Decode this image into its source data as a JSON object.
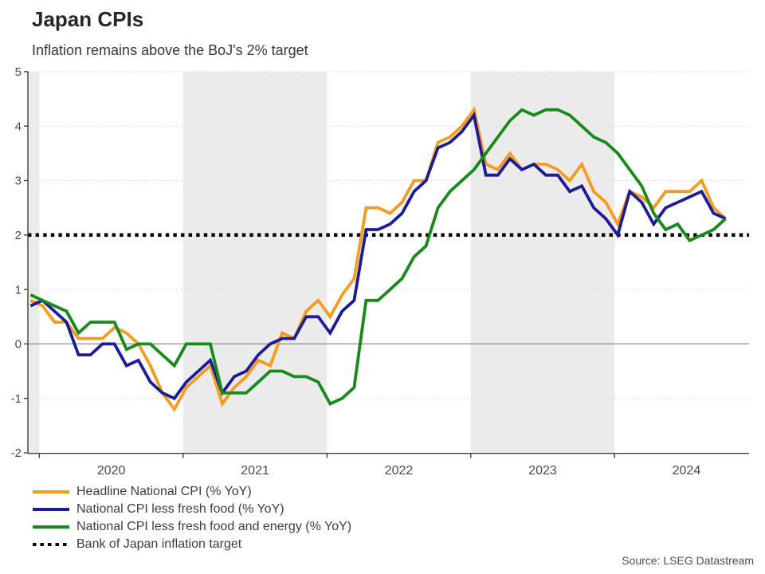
{
  "header": {
    "title": "Japan CPIs",
    "subtitle": "Inflation remains above the BoJ's 2% target"
  },
  "footer": {
    "source": "Source: LSEG Datastream"
  },
  "legend": {
    "items": [
      {
        "label": "Headline National CPI (% YoY)",
        "color": "#F59C1E",
        "style": "solid"
      },
      {
        "label": "National CPI less fresh food (% YoY)",
        "color": "#1C1C99",
        "style": "solid"
      },
      {
        "label": "National CPI less fresh food and energy (% YoY)",
        "color": "#188A1C",
        "style": "solid"
      },
      {
        "label": "Bank of Japan inflation target",
        "color": "#000000",
        "style": "dotted"
      }
    ]
  },
  "chart_data": {
    "type": "line",
    "title": "Japan CPIs",
    "subtitle": "Inflation remains above the BoJ's 2% target",
    "xlabel": "",
    "ylabel": "",
    "ylim": [
      -2,
      5
    ],
    "yticks": [
      -2,
      -1,
      0,
      1,
      2,
      3,
      4,
      5
    ],
    "grid": "horizontal-dashed",
    "legend_position": "bottom-left",
    "x": [
      "2019-12",
      "2020-01",
      "2020-02",
      "2020-03",
      "2020-04",
      "2020-05",
      "2020-06",
      "2020-07",
      "2020-08",
      "2020-09",
      "2020-10",
      "2020-11",
      "2020-12",
      "2021-01",
      "2021-02",
      "2021-03",
      "2021-04",
      "2021-05",
      "2021-06",
      "2021-07",
      "2021-08",
      "2021-09",
      "2021-10",
      "2021-11",
      "2021-12",
      "2022-01",
      "2022-02",
      "2022-03",
      "2022-04",
      "2022-05",
      "2022-06",
      "2022-07",
      "2022-08",
      "2022-09",
      "2022-10",
      "2022-11",
      "2022-12",
      "2023-01",
      "2023-02",
      "2023-03",
      "2023-04",
      "2023-05",
      "2023-06",
      "2023-07",
      "2023-08",
      "2023-09",
      "2023-10",
      "2023-11",
      "2023-12",
      "2024-01",
      "2024-02",
      "2024-03",
      "2024-04",
      "2024-05",
      "2024-06",
      "2024-07",
      "2024-08",
      "2024-09",
      "2024-10"
    ],
    "series": [
      {
        "name": "Headline National CPI (% YoY)",
        "color": "#F59C1E",
        "values": [
          0.8,
          0.7,
          0.4,
          0.4,
          0.1,
          0.1,
          0.1,
          0.3,
          0.2,
          0.0,
          -0.4,
          -0.9,
          -1.2,
          -0.8,
          -0.6,
          -0.4,
          -1.1,
          -0.8,
          -0.6,
          -0.3,
          -0.4,
          0.2,
          0.1,
          0.6,
          0.8,
          0.5,
          0.9,
          1.2,
          2.5,
          2.5,
          2.4,
          2.6,
          3.0,
          3.0,
          3.7,
          3.8,
          4.0,
          4.3,
          3.3,
          3.2,
          3.5,
          3.2,
          3.3,
          3.3,
          3.2,
          3.0,
          3.3,
          2.8,
          2.6,
          2.2,
          2.8,
          2.7,
          2.5,
          2.8,
          2.8,
          2.8,
          3.0,
          2.5,
          2.3
        ]
      },
      {
        "name": "National CPI less fresh food (% YoY)",
        "color": "#1C1C99",
        "values": [
          0.7,
          0.8,
          0.6,
          0.4,
          -0.2,
          -0.2,
          0.0,
          0.0,
          -0.4,
          -0.3,
          -0.7,
          -0.9,
          -1.0,
          -0.7,
          -0.5,
          -0.3,
          -0.9,
          -0.6,
          -0.5,
          -0.2,
          0.0,
          0.1,
          0.1,
          0.5,
          0.5,
          0.2,
          0.6,
          0.8,
          2.1,
          2.1,
          2.2,
          2.4,
          2.8,
          3.0,
          3.6,
          3.7,
          3.9,
          4.2,
          3.1,
          3.1,
          3.4,
          3.2,
          3.3,
          3.1,
          3.1,
          2.8,
          2.9,
          2.5,
          2.3,
          2.0,
          2.8,
          2.6,
          2.2,
          2.5,
          2.6,
          2.7,
          2.8,
          2.4,
          2.3
        ]
      },
      {
        "name": "National CPI less fresh food and energy (% YoY)",
        "color": "#188A1C",
        "values": [
          0.9,
          0.8,
          0.7,
          0.6,
          0.2,
          0.4,
          0.4,
          0.4,
          -0.1,
          0.0,
          0.0,
          -0.2,
          -0.4,
          0.0,
          0.0,
          0.0,
          -0.9,
          -0.9,
          -0.9,
          -0.7,
          -0.5,
          -0.5,
          -0.6,
          -0.6,
          -0.7,
          -1.1,
          -1.0,
          -0.8,
          0.8,
          0.8,
          1.0,
          1.2,
          1.6,
          1.8,
          2.5,
          2.8,
          3.0,
          3.2,
          3.5,
          3.8,
          4.1,
          4.3,
          4.2,
          4.3,
          4.3,
          4.2,
          4.0,
          3.8,
          3.7,
          3.5,
          3.2,
          2.9,
          2.4,
          2.1,
          2.2,
          1.9,
          2.0,
          2.1,
          2.3
        ]
      }
    ],
    "target_line": {
      "label": "Bank of Japan inflation target",
      "value": 2.0,
      "color": "#000000",
      "style": "dotted"
    },
    "x_year_ticks": [
      {
        "label": "2020",
        "start": "2020-01"
      },
      {
        "label": "2021",
        "start": "2021-01"
      },
      {
        "label": "2022",
        "start": "2022-01"
      },
      {
        "label": "2023",
        "start": "2023-01"
      },
      {
        "label": "2024",
        "start": "2024-01"
      }
    ],
    "shaded_bands": [
      [
        "2019-12",
        "2020-01"
      ],
      [
        "2021-01",
        "2022-01"
      ],
      [
        "2023-01",
        "2024-01"
      ]
    ],
    "band_color": "#EBEBEB"
  }
}
